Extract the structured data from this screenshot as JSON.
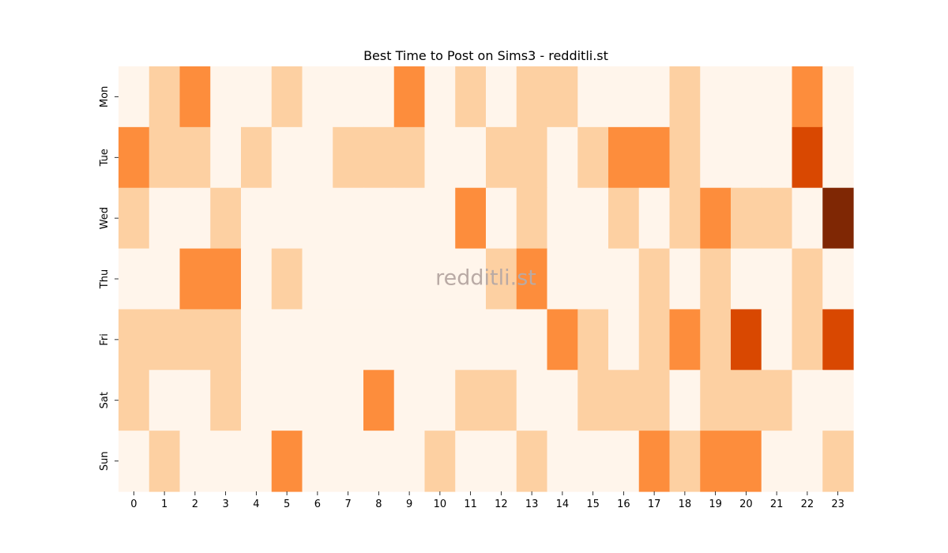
{
  "chart_data": {
    "type": "heatmap",
    "title": "Best Time to Post on Sims3 - redditli.st",
    "watermark": "redditli.st",
    "x_labels": [
      "0",
      "1",
      "2",
      "3",
      "4",
      "5",
      "6",
      "7",
      "8",
      "9",
      "10",
      "11",
      "12",
      "13",
      "14",
      "15",
      "16",
      "17",
      "18",
      "19",
      "20",
      "21",
      "22",
      "23"
    ],
    "y_labels": [
      "Mon",
      "Tue",
      "Wed",
      "Thu",
      "Fri",
      "Sat",
      "Sun"
    ],
    "values": [
      [
        0,
        1,
        2,
        0,
        0,
        1,
        0,
        0,
        0,
        2,
        0,
        1,
        0,
        1,
        1,
        0,
        0,
        0,
        1,
        0,
        0,
        0,
        2,
        0
      ],
      [
        2,
        1,
        1,
        0,
        1,
        0,
        0,
        1,
        1,
        1,
        0,
        0,
        1,
        1,
        0,
        1,
        2,
        2,
        1,
        0,
        0,
        0,
        3,
        0
      ],
      [
        1,
        0,
        0,
        1,
        0,
        0,
        0,
        0,
        0,
        0,
        0,
        2,
        0,
        1,
        0,
        0,
        1,
        0,
        1,
        2,
        1,
        1,
        0,
        4
      ],
      [
        0,
        0,
        2,
        2,
        0,
        1,
        0,
        0,
        0,
        0,
        0,
        0,
        1,
        2,
        0,
        0,
        0,
        1,
        0,
        1,
        0,
        0,
        1,
        0
      ],
      [
        1,
        1,
        1,
        1,
        0,
        0,
        0,
        0,
        0,
        0,
        0,
        0,
        0,
        0,
        2,
        1,
        0,
        1,
        2,
        1,
        3,
        0,
        1,
        3
      ],
      [
        1,
        0,
        0,
        1,
        0,
        0,
        0,
        0,
        2,
        0,
        0,
        1,
        1,
        0,
        0,
        1,
        1,
        1,
        0,
        1,
        1,
        1,
        0,
        0
      ],
      [
        0,
        1,
        0,
        0,
        0,
        2,
        0,
        0,
        0,
        0,
        1,
        0,
        0,
        1,
        0,
        0,
        0,
        2,
        1,
        2,
        2,
        0,
        0,
        1
      ]
    ],
    "value_range": [
      0,
      4
    ],
    "colormap": "Oranges",
    "level_colors": [
      "#fff5eb",
      "#fdd0a2",
      "#fd8d3c",
      "#d94801",
      "#7f2704"
    ],
    "colorbar": false,
    "grid": false
  }
}
